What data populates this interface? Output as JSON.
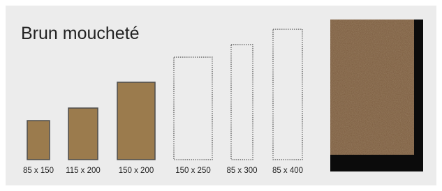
{
  "title": "Brun moucheté",
  "sizes": [
    {
      "label": "85 x 150",
      "available": true
    },
    {
      "label": "115 x 200",
      "available": true
    },
    {
      "label": "150 x 200",
      "available": true
    },
    {
      "label": "150 x 250",
      "available": false
    },
    {
      "label": "85 x 300",
      "available": false
    },
    {
      "label": "85 x 400",
      "available": false
    }
  ]
}
